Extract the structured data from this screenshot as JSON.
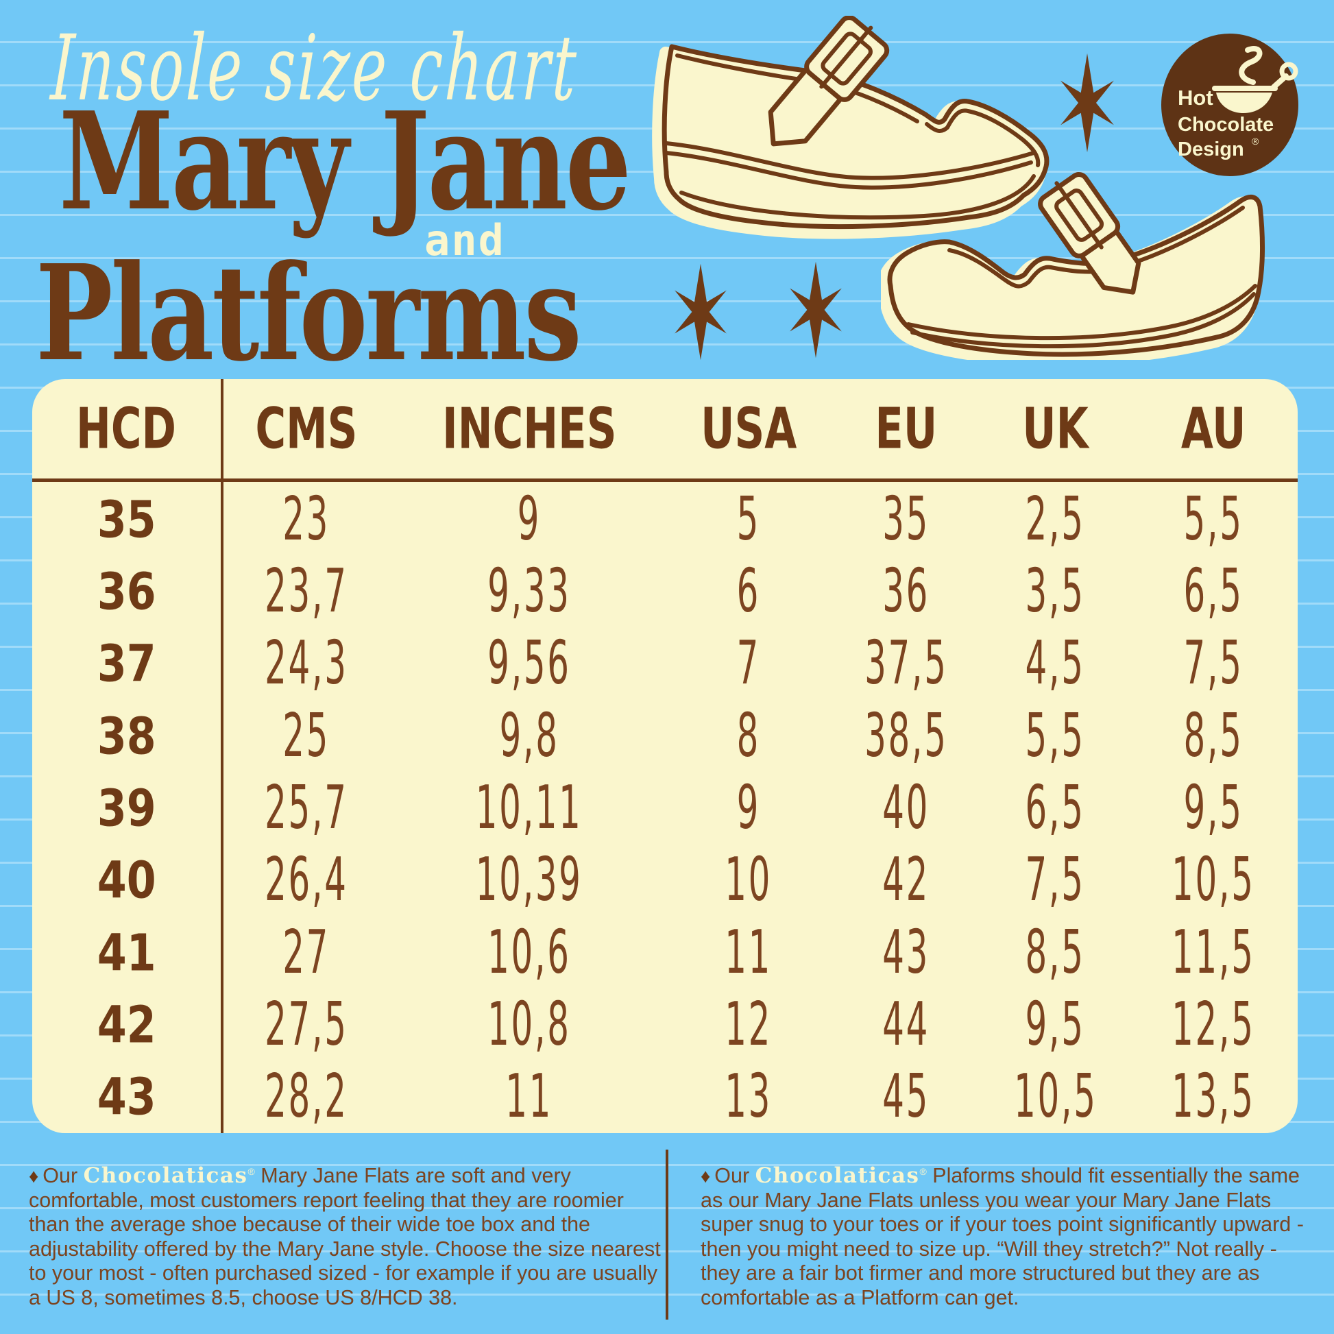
{
  "page": {
    "background_blue": "#71c8f6",
    "ruled_line": "rgba(255,255,255,0.34)",
    "cream": "#faf6cd",
    "brown": "#6e3a16",
    "text_brown": "#7c4420",
    "logo_brown": "#5e3315"
  },
  "header": {
    "script_title": "Insole size chart",
    "title_line1": "Mary Jane",
    "title_and": "and",
    "title_line2": "Platforms"
  },
  "logo": {
    "line1": "Hot",
    "line2": "Chocolate",
    "line3": "Design",
    "registered": "®"
  },
  "table": {
    "columns": [
      "HCD",
      "CMS",
      "INCHES",
      "USA",
      "EU",
      "UK",
      "AU"
    ],
    "rows": [
      [
        "35",
        "23",
        "9",
        "5",
        "35",
        "2,5",
        "5,5"
      ],
      [
        "36",
        "23,7",
        "9,33",
        "6",
        "36",
        "3,5",
        "6,5"
      ],
      [
        "37",
        "24,3",
        "9,56",
        "7",
        "37,5",
        "4,5",
        "7,5"
      ],
      [
        "38",
        "25",
        "9,8",
        "8",
        "38,5",
        "5,5",
        "8,5"
      ],
      [
        "39",
        "25,7",
        "10,11",
        "9",
        "40",
        "6,5",
        "9,5"
      ],
      [
        "40",
        "26,4",
        "10,39",
        "10",
        "42",
        "7,5",
        "10,5"
      ],
      [
        "41",
        "27",
        "10,6",
        "11",
        "43",
        "8,5",
        "11,5"
      ],
      [
        "42",
        "27,5",
        "10,8",
        "12",
        "44",
        "9,5",
        "12,5"
      ],
      [
        "43",
        "28,2",
        "11",
        "13",
        "45",
        "10,5",
        "13,5"
      ]
    ]
  },
  "footnotes": {
    "left": {
      "bullet": "♦",
      "prefix": "Our",
      "brand": "Chocolaticas",
      "registered": "®",
      "text": "Mary Jane Flats are soft and very comfortable, most customers report feeling that they are roomier than the average shoe because of their wide toe box and the adjustability offered by the Mary Jane style. Choose the size nearest to your most - often purchased sized - for example if you are usually a US 8, sometimes 8.5, choose US 8/HCD 38."
    },
    "right": {
      "bullet": "♦",
      "prefix": "Our",
      "brand": "Chocolaticas",
      "registered": "®",
      "text": "Plaforms should fit essentially the same as our Mary Jane Flats unless you wear your Mary Jane Flats super snug to your toes or if your toes point significantly upward - then you might need to size up. “Will they stretch?” Not really - they are a fair bot firmer and more structured but they are as comfortable as a Platform can get."
    }
  }
}
